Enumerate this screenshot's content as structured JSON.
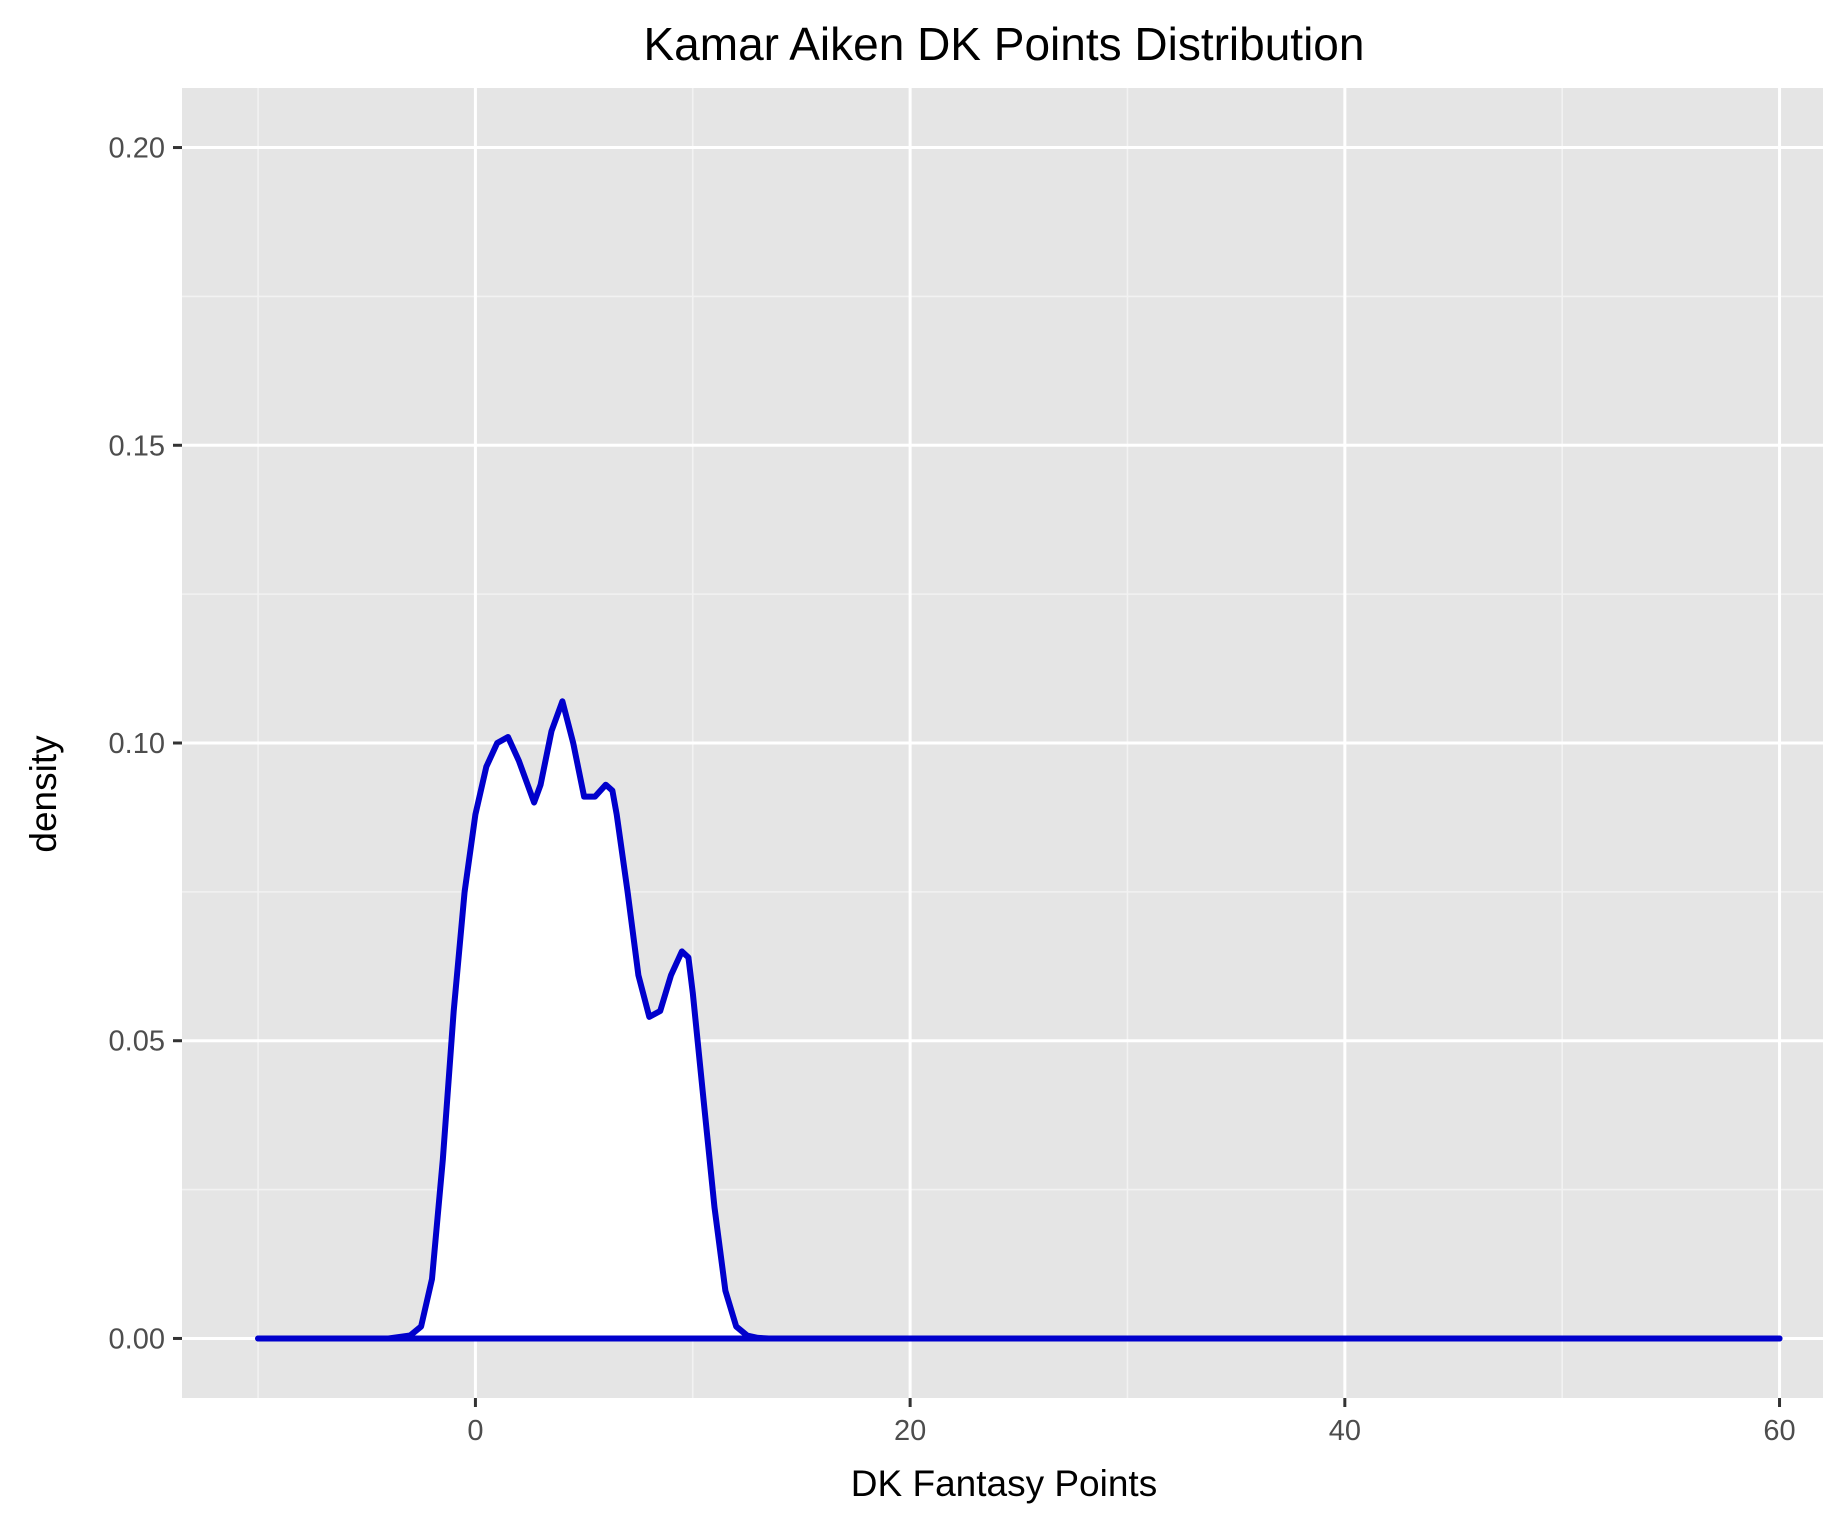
{
  "chart_data": {
    "type": "area",
    "title": "Kamar Aiken DK Points Distribution",
    "xlabel": "DK Fantasy Points",
    "ylabel": "density",
    "xlim": [
      -13.5,
      62
    ],
    "ylim": [
      -0.01,
      0.21
    ],
    "x_ticks": [
      {
        "value": 0,
        "label": "0"
      },
      {
        "value": 20,
        "label": "20"
      },
      {
        "value": 40,
        "label": "40"
      },
      {
        "value": 60,
        "label": "60"
      }
    ],
    "y_ticks": [
      {
        "value": 0.0,
        "label": "0.00"
      },
      {
        "value": 0.05,
        "label": "0.05"
      },
      {
        "value": 0.1,
        "label": "0.10"
      },
      {
        "value": 0.15,
        "label": "0.15"
      },
      {
        "value": 0.2,
        "label": "0.20"
      }
    ],
    "x_minor": [
      -10,
      10,
      30,
      50
    ],
    "y_minor": [
      0.025,
      0.075,
      0.125,
      0.175
    ],
    "grid": true,
    "series": [
      {
        "color": "#0000CC",
        "fill": "#FFFFFF",
        "x": [
          -10,
          -4,
          -3,
          -2.5,
          -2,
          -1.5,
          -1,
          -0.5,
          0,
          0.5,
          1,
          1.5,
          2,
          2.7,
          3,
          3.5,
          4,
          4.5,
          5,
          5.5,
          6,
          6.3,
          6.5,
          7,
          7.5,
          8,
          8.5,
          9,
          9.5,
          9.8,
          10,
          10.5,
          11,
          11.5,
          12,
          12.5,
          13,
          13.5,
          14,
          20,
          40,
          60
        ],
        "y": [
          0,
          0,
          0.0005,
          0.002,
          0.01,
          0.03,
          0.055,
          0.075,
          0.088,
          0.096,
          0.1,
          0.101,
          0.097,
          0.09,
          0.093,
          0.102,
          0.107,
          0.1,
          0.091,
          0.091,
          0.093,
          0.092,
          0.088,
          0.075,
          0.061,
          0.054,
          0.055,
          0.061,
          0.065,
          0.064,
          0.058,
          0.04,
          0.022,
          0.008,
          0.002,
          0.0005,
          0.0001,
          0,
          0,
          0,
          0,
          0
        ]
      }
    ]
  }
}
